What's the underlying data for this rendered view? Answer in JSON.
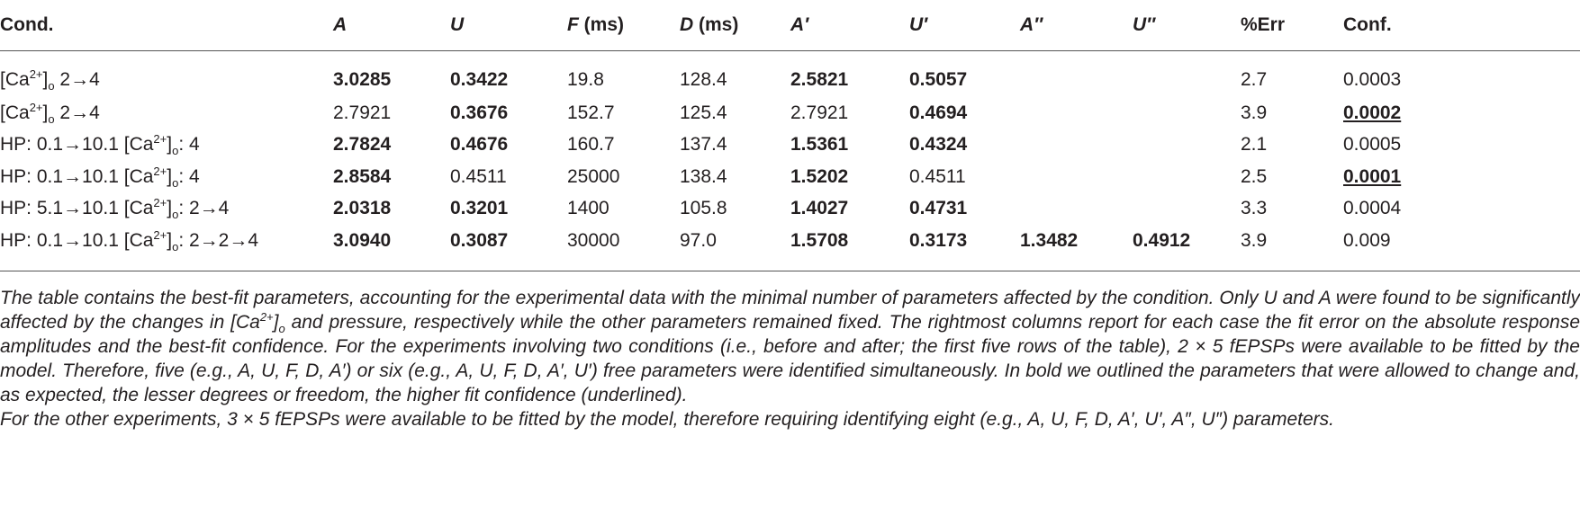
{
  "table": {
    "header": [
      {
        "parts": [
          {
            "text": "Cond."
          }
        ]
      },
      {
        "parts": [
          {
            "text": "A",
            "italic": true
          }
        ]
      },
      {
        "parts": [
          {
            "text": "U",
            "italic": true
          }
        ]
      },
      {
        "parts": [
          {
            "text": "F",
            "italic": true
          },
          {
            "text": " (ms)"
          }
        ]
      },
      {
        "parts": [
          {
            "text": "D",
            "italic": true
          },
          {
            "text": " (ms)"
          }
        ]
      },
      {
        "parts": [
          {
            "text": "A′",
            "italic": true
          }
        ]
      },
      {
        "parts": [
          {
            "text": "U′",
            "italic": true
          }
        ]
      },
      {
        "parts": [
          {
            "text": "A″",
            "italic": true
          }
        ]
      },
      {
        "parts": [
          {
            "text": "U″",
            "italic": true
          }
        ]
      },
      {
        "parts": [
          {
            "text": "%Err"
          }
        ]
      },
      {
        "parts": [
          {
            "text": "Conf."
          }
        ]
      }
    ],
    "rows": [
      [
        {
          "parts": [
            {
              "text": "[Ca"
            },
            {
              "text": "2+",
              "sup": true
            },
            {
              "text": "]"
            },
            {
              "text": "o",
              "sub": true
            },
            {
              "text": " 2→4"
            }
          ]
        },
        {
          "text": "3.0285",
          "bold": true
        },
        {
          "text": "0.3422",
          "bold": true
        },
        {
          "text": "19.8"
        },
        {
          "text": "128.4"
        },
        {
          "text": "2.5821",
          "bold": true
        },
        {
          "text": "0.5057",
          "bold": true
        },
        null,
        null,
        {
          "text": "2.7"
        },
        {
          "text": "0.0003"
        }
      ],
      [
        {
          "parts": [
            {
              "text": "[Ca"
            },
            {
              "text": "2+",
              "sup": true
            },
            {
              "text": "]"
            },
            {
              "text": "o",
              "sub": true
            },
            {
              "text": " 2→4"
            }
          ]
        },
        {
          "text": "2.7921"
        },
        {
          "text": "0.3676",
          "bold": true
        },
        {
          "text": "152.7"
        },
        {
          "text": "125.4"
        },
        {
          "text": "2.7921"
        },
        {
          "text": "0.4694",
          "bold": true
        },
        null,
        null,
        {
          "text": "3.9"
        },
        {
          "text": "0.0002",
          "bold": true,
          "underline": true
        }
      ],
      [
        {
          "parts": [
            {
              "text": "HP: 0.1→10.1 [Ca"
            },
            {
              "text": "2+",
              "sup": true
            },
            {
              "text": "]"
            },
            {
              "text": "o",
              "sub": true
            },
            {
              "text": ": 4"
            }
          ]
        },
        {
          "text": "2.7824",
          "bold": true
        },
        {
          "text": "0.4676",
          "bold": true
        },
        {
          "text": "160.7"
        },
        {
          "text": "137.4"
        },
        {
          "text": "1.5361",
          "bold": true
        },
        {
          "text": "0.4324",
          "bold": true
        },
        null,
        null,
        {
          "text": "2.1"
        },
        {
          "text": "0.0005"
        }
      ],
      [
        {
          "parts": [
            {
              "text": "HP: 0.1→10.1 [Ca"
            },
            {
              "text": "2+",
              "sup": true
            },
            {
              "text": "]"
            },
            {
              "text": "o",
              "sub": true
            },
            {
              "text": ": 4"
            }
          ]
        },
        {
          "text": "2.8584",
          "bold": true
        },
        {
          "text": "0.4511"
        },
        {
          "text": "25000"
        },
        {
          "text": "138.4"
        },
        {
          "text": "1.5202",
          "bold": true
        },
        {
          "text": "0.4511"
        },
        null,
        null,
        {
          "text": "2.5"
        },
        {
          "text": "0.0001",
          "bold": true,
          "underline": true
        }
      ],
      [
        {
          "parts": [
            {
              "text": "HP: 5.1→10.1 [Ca"
            },
            {
              "text": "2+",
              "sup": true
            },
            {
              "text": "]"
            },
            {
              "text": "o",
              "sub": true
            },
            {
              "text": ": 2→4"
            }
          ]
        },
        {
          "text": "2.0318",
          "bold": true
        },
        {
          "text": "0.3201",
          "bold": true
        },
        {
          "text": "1400"
        },
        {
          "text": "105.8"
        },
        {
          "text": "1.4027",
          "bold": true
        },
        {
          "text": "0.4731",
          "bold": true
        },
        null,
        null,
        {
          "text": "3.3"
        },
        {
          "text": "0.0004"
        }
      ],
      [
        {
          "parts": [
            {
              "text": "HP: 0.1→10.1 [Ca"
            },
            {
              "text": "2+",
              "sup": true
            },
            {
              "text": "]"
            },
            {
              "text": "o",
              "sub": true
            },
            {
              "text": ": 2→2→4"
            }
          ]
        },
        {
          "text": "3.0940",
          "bold": true
        },
        {
          "text": "0.3087",
          "bold": true
        },
        {
          "text": "30000"
        },
        {
          "text": "97.0"
        },
        {
          "text": "1.5708",
          "bold": true
        },
        {
          "text": "0.3173",
          "bold": true
        },
        {
          "text": "1.3482",
          "bold": true
        },
        {
          "text": "0.4912",
          "bold": true
        },
        {
          "text": "3.9"
        },
        {
          "text": "0.009"
        }
      ]
    ],
    "notes": [
      {
        "parts": [
          {
            "text": "The table contains the best-fit parameters, accounting for the experimental data with the minimal number of parameters affected by the condition. Only U and A were found to be significantly affected by the changes in [Ca"
          },
          {
            "text": "2+",
            "sup": true
          },
          {
            "text": "]"
          },
          {
            "text": "o",
            "sub": true
          },
          {
            "text": " and pressure, respectively while the other parameters remained fixed. The rightmost columns report for each case the fit error on the absolute response amplitudes and the best-fit confidence. For the experiments involving two conditions (i.e., before and after; the first five rows of the table), 2 × 5 fEPSPs were available to be fitted by the model. Therefore, five (e.g., A, U, F, D, A′) or six (e.g., A, U, F, D, A′, U′) free parameters were identified simultaneously. In bold we outlined the parameters that were allowed to change and, as expected, the lesser degrees or freedom, the higher fit confidence (underlined)."
          }
        ]
      },
      {
        "parts": [
          {
            "text": "For the other experiments, 3 × 5 fEPSPs were available to be fitted by the model, therefore requiring identifying eight (e.g., A, U, F, D, A′, U′, A″, U″) parameters."
          }
        ]
      }
    ]
  }
}
